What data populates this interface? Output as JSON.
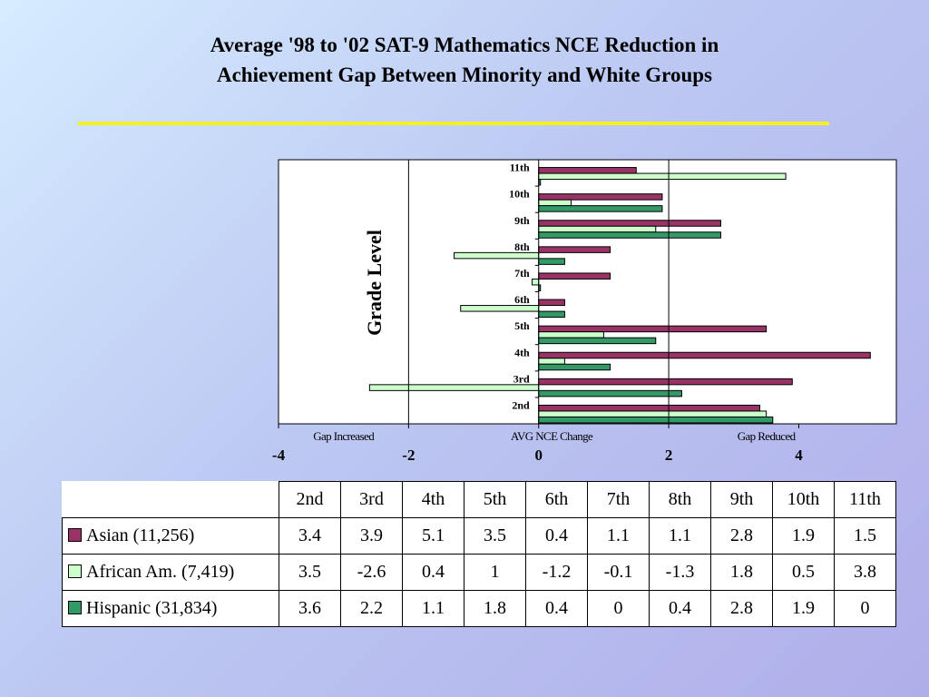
{
  "title": {
    "line1": "Average  '98 to '02 SAT-9 Mathematics NCE Reduction in",
    "line2": "Achievement Gap Between Minority and White  Groups"
  },
  "colors": {
    "asian": "#993366",
    "african": "#ccffcc",
    "hispanic": "#339966",
    "title_rule": "#f5f020"
  },
  "chart_data": {
    "type": "bar",
    "orientation": "horizontal",
    "categories": [
      "2nd",
      "3rd",
      "4th",
      "5th",
      "6th",
      "7th",
      "8th",
      "9th",
      "10th",
      "11th"
    ],
    "series": [
      {
        "name": "Asian (11,256)",
        "values": [
          3.4,
          3.9,
          5.1,
          3.5,
          0.4,
          1.1,
          1.1,
          2.8,
          1.9,
          1.5
        ]
      },
      {
        "name": "African Am. (7,419)",
        "values": [
          3.5,
          -2.6,
          0.4,
          1,
          -1.2,
          -0.1,
          -1.3,
          1.8,
          0.5,
          3.8
        ]
      },
      {
        "name": "Hispanic (31,834)",
        "values": [
          3.6,
          2.2,
          1.1,
          1.8,
          0.4,
          0,
          0.4,
          2.8,
          1.9,
          0
        ]
      }
    ],
    "ylabel": "Grade Level",
    "xlim": [
      -4,
      5.5
    ],
    "x_ticks": [
      "-4",
      "-2",
      "0",
      "2",
      "4"
    ],
    "axis_annotations": [
      "Gap Increased",
      "AVG NCE Change",
      "Gap Reduced"
    ],
    "grid": "vertical lines at -2 and 2",
    "legend": "data table below chart"
  },
  "table": {
    "headers": [
      "2nd",
      "3rd",
      "4th",
      "5th",
      "6th",
      "7th",
      "8th",
      "9th",
      "10th",
      "11th"
    ],
    "rows": [
      {
        "label": "Asian (11,256)",
        "values": [
          "3.4",
          "3.9",
          "5.1",
          "3.5",
          "0.4",
          "1.1",
          "1.1",
          "2.8",
          "1.9",
          "1.5"
        ]
      },
      {
        "label": "African Am. (7,419)",
        "values": [
          "3.5",
          "-2.6",
          "0.4",
          "1",
          "-1.2",
          "-0.1",
          "-1.3",
          "1.8",
          "0.5",
          "3.8"
        ]
      },
      {
        "label": "Hispanic (31,834)",
        "values": [
          "3.6",
          "2.2",
          "1.1",
          "1.8",
          "0.4",
          "0",
          "0.4",
          "2.8",
          "1.9",
          "0"
        ]
      }
    ]
  }
}
